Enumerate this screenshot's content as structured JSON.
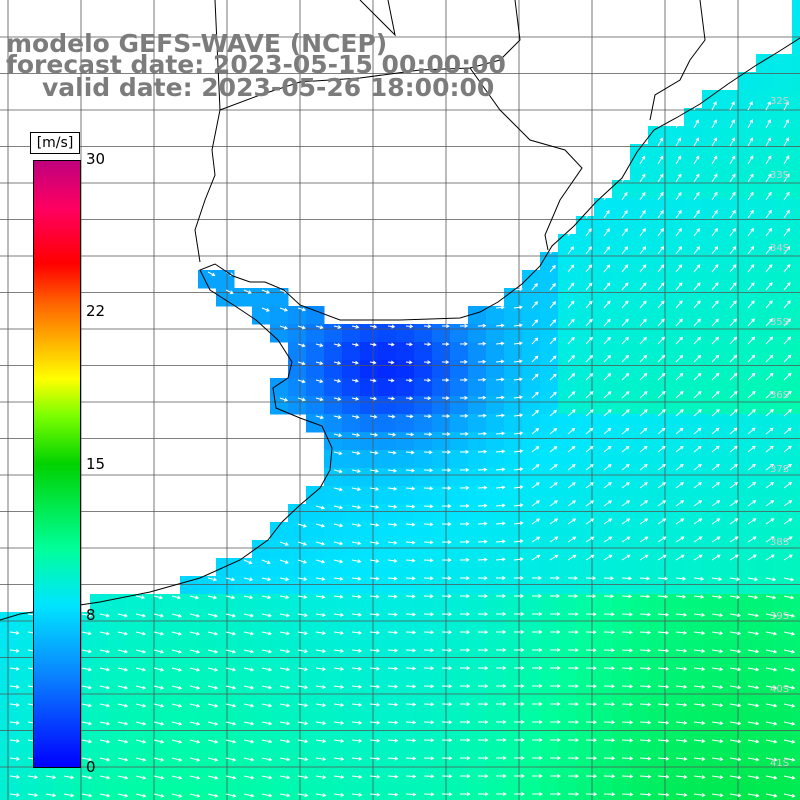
{
  "title": {
    "line1": "modelo GEFS-WAVE (NCEP)",
    "line2": "forecast date: 2023-05-15 00:00:00",
    "line3": "valid date: 2023-05-26 18:00:00"
  },
  "colorbar": {
    "units": "[m/s]",
    "ticks": [
      "30",
      "22",
      "15",
      "8",
      "0"
    ],
    "tick_values": [
      30,
      22,
      15,
      8,
      0
    ],
    "min": 0,
    "max": 30,
    "colors": [
      "#0000ff",
      "#0a82ff",
      "#00e5ff",
      "#00ff9a",
      "#00d200",
      "#7cff00",
      "#ffff00",
      "#ffb400",
      "#ff6a00",
      "#ff0000",
      "#ff0060",
      "#c0007e"
    ]
  },
  "map": {
    "land_color": "#ffffff",
    "coastline_color": "#000000",
    "grid_color": "#555555",
    "arrow_color": "#ffffff",
    "lat_labels": [
      "32S",
      "33S",
      "34S",
      "35S",
      "36S",
      "37S",
      "38S",
      "39S",
      "40S",
      "41S"
    ]
  }
}
